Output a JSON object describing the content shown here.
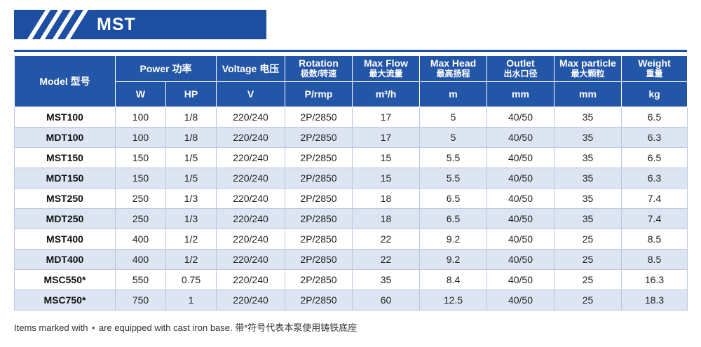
{
  "banner": {
    "title": "MST"
  },
  "table": {
    "header": {
      "model": "Model 型号",
      "power": "Power 功率",
      "voltage": "Voltage 电压",
      "rotation": "Rotation",
      "rotation_cn": "极数/转速",
      "max_flow": "Max Flow",
      "max_flow_cn": "最大流量",
      "max_head": "Max Head",
      "max_head_cn": "最高扬程",
      "outlet": "Outlet",
      "outlet_cn": "出水口径",
      "max_particle": "Max particle",
      "max_particle_cn": "最大颗粒",
      "weight": "Weight",
      "weight_cn": "重量"
    },
    "units": [
      "W",
      "HP",
      "V",
      "P/rmp",
      "m³/h",
      "m",
      "mm",
      "mm",
      "kg"
    ],
    "rows": [
      [
        "MST100",
        "100",
        "1/8",
        "220/240",
        "2P/2850",
        "17",
        "5",
        "40/50",
        "35",
        "6.5"
      ],
      [
        "MDT100",
        "100",
        "1/8",
        "220/240",
        "2P/2850",
        "17",
        "5",
        "40/50",
        "35",
        "6.3"
      ],
      [
        "MST150",
        "150",
        "1/5",
        "220/240",
        "2P/2850",
        "15",
        "5.5",
        "40/50",
        "35",
        "6.5"
      ],
      [
        "MDT150",
        "150",
        "1/5",
        "220/240",
        "2P/2850",
        "15",
        "5.5",
        "40/50",
        "35",
        "6.3"
      ],
      [
        "MST250",
        "250",
        "1/3",
        "220/240",
        "2P/2850",
        "18",
        "6.5",
        "40/50",
        "35",
        "7.4"
      ],
      [
        "MDT250",
        "250",
        "1/3",
        "220/240",
        "2P/2850",
        "18",
        "6.5",
        "40/50",
        "35",
        "7.4"
      ],
      [
        "MST400",
        "400",
        "1/2",
        "220/240",
        "2P/2850",
        "22",
        "9.2",
        "40/50",
        "25",
        "8.5"
      ],
      [
        "MDT400",
        "400",
        "1/2",
        "220/240",
        "2P/2850",
        "22",
        "9.2",
        "40/50",
        "25",
        "8.5"
      ],
      [
        "MSC550*",
        "550",
        "0.75",
        "220/240",
        "2P/2850",
        "35",
        "8.4",
        "40/50",
        "25",
        "16.3"
      ],
      [
        "MSC750*",
        "750",
        "1",
        "220/240",
        "2P/2850",
        "60",
        "12.5",
        "40/50",
        "25",
        "18.3"
      ]
    ]
  },
  "footnote": "Items marked with ⋆ are equipped with cast iron base. 带*符号代表本泵使用铸铁底座",
  "colors": {
    "brand_blue": "#1e4ea1",
    "header_blue": "#2456a8",
    "row_stripe": "#dde5f3"
  }
}
